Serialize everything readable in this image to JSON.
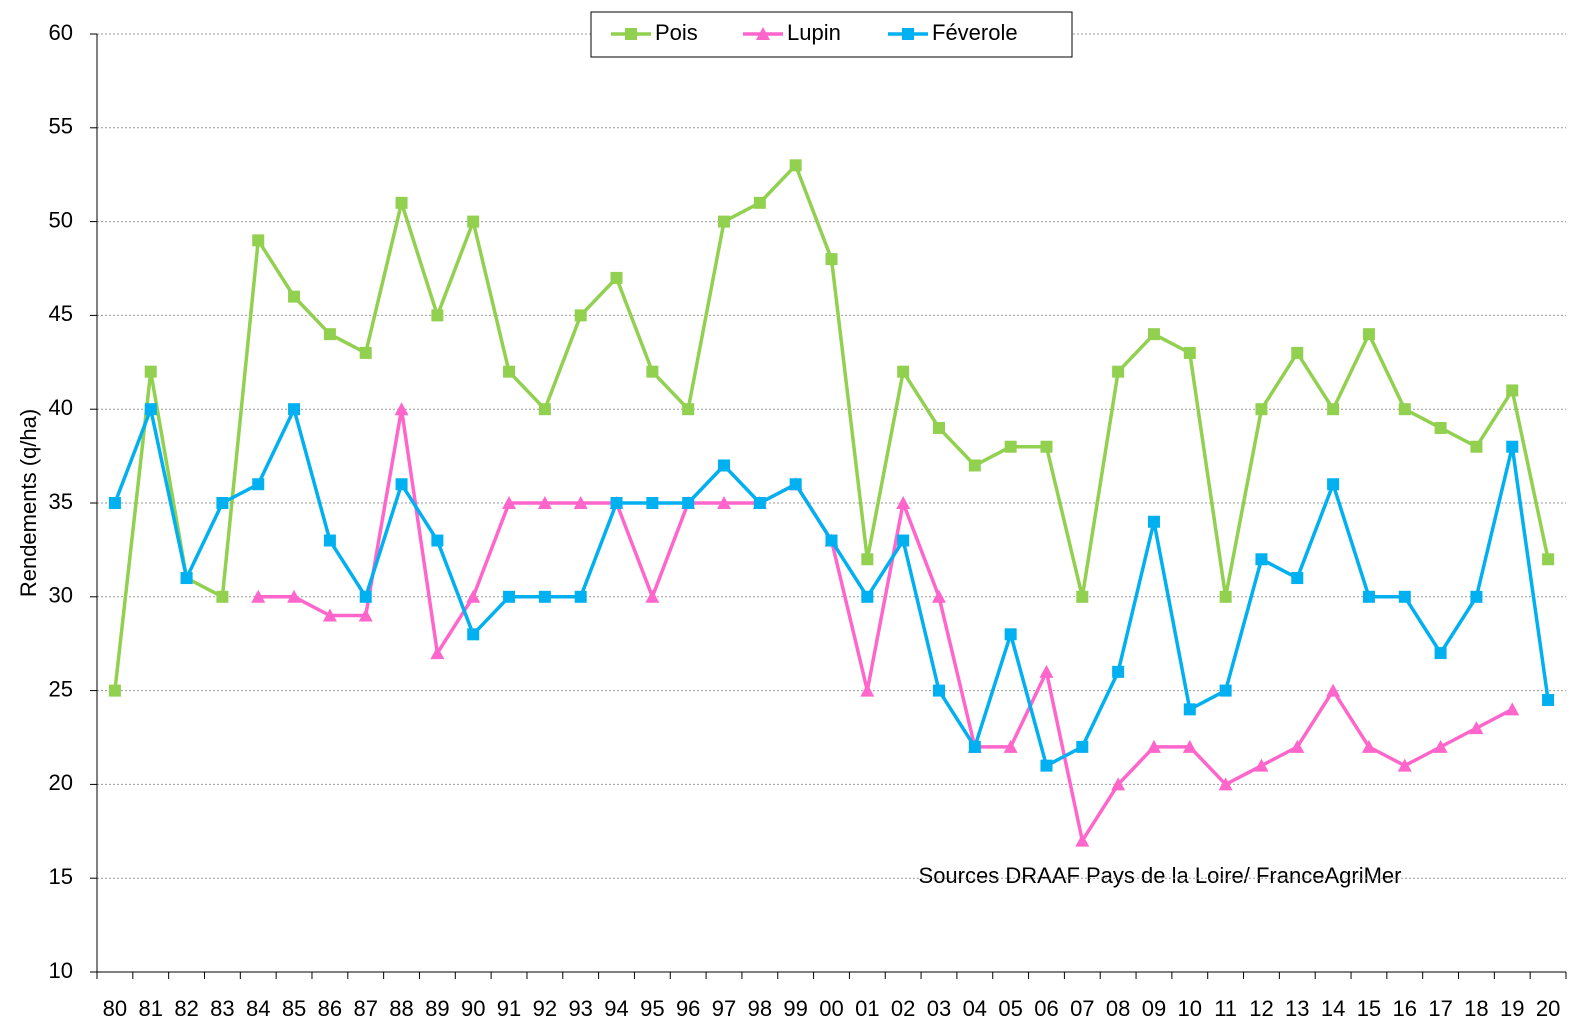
{
  "chart_data": {
    "type": "line",
    "y_label": "Rendements (q/ha)",
    "annotation": "Sources DRAAF Pays de la Loire/ FranceAgriMer",
    "categories": [
      "80",
      "81",
      "82",
      "83",
      "84",
      "85",
      "86",
      "87",
      "88",
      "89",
      "90",
      "91",
      "92",
      "93",
      "94",
      "95",
      "96",
      "97",
      "98",
      "99",
      "00",
      "01",
      "02",
      "03",
      "04",
      "05",
      "06",
      "07",
      "08",
      "09",
      "10",
      "11",
      "12",
      "13",
      "14",
      "15",
      "16",
      "17",
      "18",
      "19",
      "20"
    ],
    "series": [
      {
        "name": "Pois",
        "color": "#92d050",
        "marker": "square",
        "values": [
          25,
          42,
          31,
          30,
          49,
          46,
          44,
          43,
          51,
          45,
          50,
          42,
          40,
          45,
          47,
          42,
          40,
          50,
          51,
          53,
          48,
          32,
          42,
          39,
          37,
          38,
          38,
          30,
          42,
          44,
          43,
          30,
          40,
          43,
          40,
          44,
          40,
          39,
          38,
          41,
          32
        ]
      },
      {
        "name": "Lupin",
        "color": "#ff66cc",
        "marker": "triangle",
        "values": [
          null,
          null,
          null,
          null,
          30,
          30,
          29,
          29,
          40,
          27,
          30,
          35,
          35,
          35,
          35,
          30,
          35,
          35,
          35,
          36,
          33,
          25,
          35,
          30,
          22,
          22,
          26,
          17,
          20,
          22,
          22,
          20,
          21,
          22,
          25,
          22,
          21,
          22,
          23,
          24,
          null
        ]
      },
      {
        "name": "Féverole",
        "color": "#00b0f0",
        "marker": "square",
        "values": [
          35,
          40,
          31,
          35,
          36,
          40,
          33,
          30,
          36,
          33,
          28,
          30,
          30,
          30,
          35,
          35,
          35,
          37,
          35,
          36,
          33,
          30,
          33,
          25,
          22,
          28,
          21,
          22,
          26,
          34,
          24,
          25,
          32,
          31,
          36,
          30,
          30,
          27,
          30,
          38,
          24.5
        ]
      }
    ],
    "ylim": [
      10,
      60
    ],
    "yticks": [
      10,
      15,
      20,
      25,
      30,
      35,
      40,
      45,
      50,
      55,
      60
    ],
    "grid": true,
    "legend": "top"
  }
}
